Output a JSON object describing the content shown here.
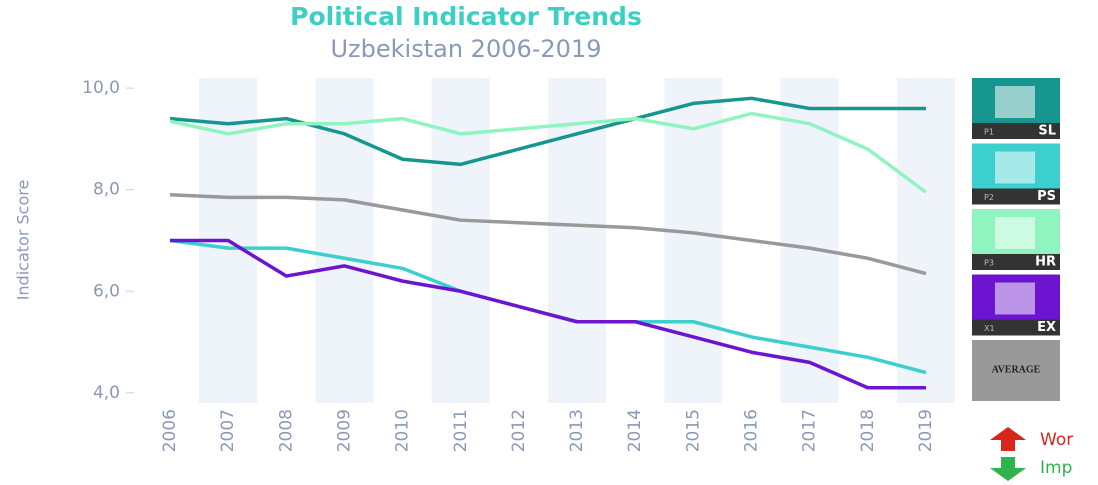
{
  "chart_data": {
    "type": "line",
    "title": "Political Indicator Trends",
    "subtitle": "Uzbekistan 2006-2019",
    "y_label": "Indicator Score",
    "categories": [
      "2006",
      "2007",
      "2008",
      "2009",
      "2010",
      "2011",
      "2012",
      "2013",
      "2014",
      "2015",
      "2016",
      "2017",
      "2018",
      "2019"
    ],
    "ylim": [
      3.8,
      10.2
    ],
    "yticks": [
      {
        "value": 10,
        "label": "10,0"
      },
      {
        "value": 8,
        "label": "8,0"
      },
      {
        "value": 6,
        "label": "6,0"
      },
      {
        "value": 4,
        "label": "4,0"
      }
    ],
    "series": [
      {
        "name": "SL",
        "code": "P1",
        "color": "#17968f",
        "values": [
          9.4,
          9.3,
          9.4,
          9.1,
          8.6,
          8.5,
          8.8,
          9.1,
          9.4,
          9.7,
          9.8,
          9.6,
          9.6,
          9.6
        ]
      },
      {
        "name": "PS",
        "code": "P2",
        "color": "#3dcfcd",
        "values": [
          7.0,
          6.85,
          6.85,
          6.65,
          6.45,
          6.0,
          5.7,
          5.4,
          5.4,
          5.4,
          5.1,
          4.9,
          4.7,
          4.4
        ]
      },
      {
        "name": "HR",
        "code": "P3",
        "color": "#8ff4c0",
        "values": [
          9.35,
          9.1,
          9.3,
          9.3,
          9.4,
          9.1,
          9.2,
          9.3,
          9.4,
          9.2,
          9.5,
          9.3,
          8.8,
          7.95
        ]
      },
      {
        "name": "EX",
        "code": "X1",
        "color": "#6c14cf",
        "values": [
          7.0,
          7.0,
          6.3,
          6.5,
          6.2,
          6.0,
          5.7,
          5.4,
          5.4,
          5.1,
          4.8,
          4.6,
          4.1,
          4.1
        ]
      },
      {
        "name": "AVERAGE",
        "color": "#999999",
        "values": [
          7.9,
          7.85,
          7.85,
          7.8,
          7.6,
          7.4,
          7.35,
          7.3,
          7.25,
          7.15,
          7.0,
          6.85,
          6.65,
          6.35
        ]
      }
    ],
    "annotations": [
      {
        "text": "Wor",
        "color": "#d9261c"
      },
      {
        "text": "Imp",
        "color": "#2fb34a"
      }
    ]
  }
}
